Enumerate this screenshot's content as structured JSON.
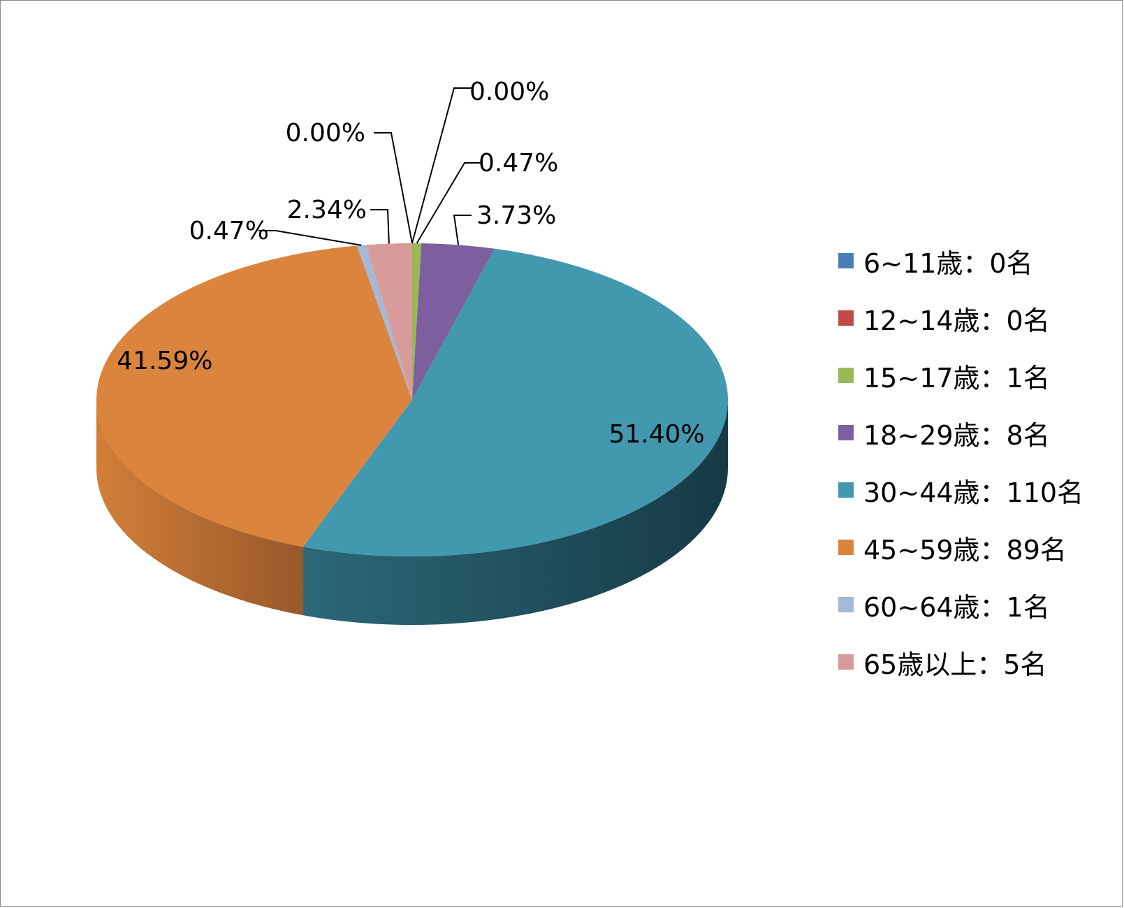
{
  "chart_data": {
    "type": "pie",
    "style": "3d",
    "title": "",
    "legend_position": "right",
    "slices": [
      {
        "label": "6~11歳：0名",
        "value": 0,
        "percent_label": "0.00%",
        "color": "#4a7ebb"
      },
      {
        "label": "12~14歳：0名",
        "value": 0,
        "percent_label": "0.00%",
        "color": "#be4b48"
      },
      {
        "label": "15~17歳：1名",
        "value": 1,
        "percent_label": "0.47%",
        "color": "#98b954"
      },
      {
        "label": "18~29歳：8名",
        "value": 8,
        "percent_label": "3.73%",
        "color": "#7d5fa0"
      },
      {
        "label": "30~44歳：110名",
        "value": 110,
        "percent_label": "51.40%",
        "color": "#4198af"
      },
      {
        "label": "45~59歳：89名",
        "value": 89,
        "percent_label": "41.59%",
        "color": "#db843d"
      },
      {
        "label": "60~64歳：1名",
        "value": 1,
        "percent_label": "0.47%",
        "color": "#a5b8d8"
      },
      {
        "label": "65歳以上：5名",
        "value": 5,
        "percent_label": "2.34%",
        "color": "#d89a9a"
      }
    ]
  }
}
